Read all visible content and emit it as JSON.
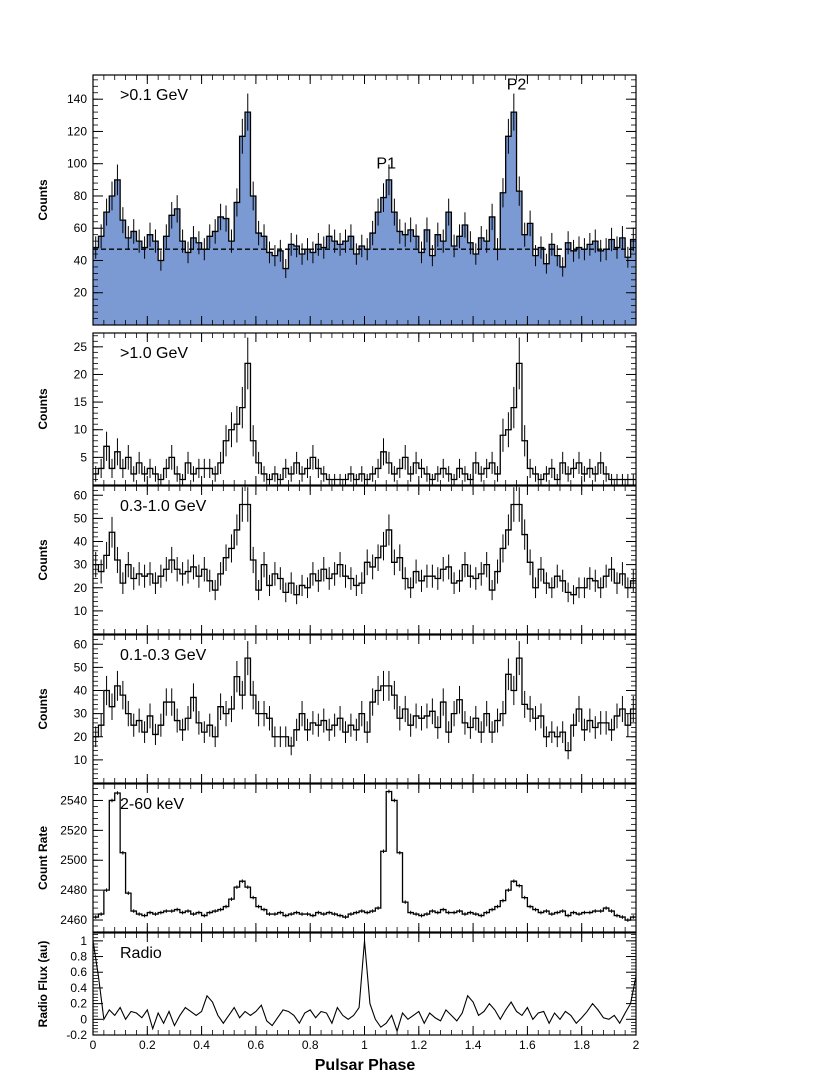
{
  "figure": {
    "xlabel": "Pulsar Phase",
    "xlim": [
      0,
      2
    ],
    "xticks": [
      "0",
      "0.2",
      "0.4",
      "0.6",
      "0.8",
      "1",
      "1.2",
      "1.4",
      "1.6",
      "1.8",
      "2"
    ],
    "xtick_values": [
      0,
      0.2,
      0.4,
      0.6,
      0.8,
      1.0,
      1.2,
      1.4,
      1.6,
      1.8,
      2.0
    ]
  },
  "chart_data": [
    {
      "type": "histogram",
      "label": ">0.1 GeV",
      "ylabel": "Counts",
      "ylim": [
        0,
        155
      ],
      "yticks": [
        20,
        40,
        60,
        80,
        100,
        120,
        140
      ],
      "filled": true,
      "fill_color": "#7b9ad3",
      "baseline": 47,
      "annotations": [
        {
          "text": "P1",
          "x": 1.08,
          "y": 97
        },
        {
          "text": "P2",
          "x": 1.56,
          "y": 146
        }
      ],
      "x": [
        0.01,
        0.03,
        0.05,
        0.07,
        0.09,
        0.11,
        0.13,
        0.15,
        0.17,
        0.19,
        0.21,
        0.23,
        0.25,
        0.27,
        0.29,
        0.31,
        0.33,
        0.35,
        0.37,
        0.39,
        0.41,
        0.43,
        0.45,
        0.47,
        0.49,
        0.51,
        0.53,
        0.55,
        0.57,
        0.59,
        0.61,
        0.63,
        0.65,
        0.67,
        0.69,
        0.71,
        0.73,
        0.75,
        0.77,
        0.79,
        0.81,
        0.83,
        0.85,
        0.87,
        0.89,
        0.91,
        0.93,
        0.95,
        0.97,
        0.99,
        1.01,
        1.03,
        1.05,
        1.07,
        1.09,
        1.11,
        1.13,
        1.15,
        1.17,
        1.19,
        1.21,
        1.23,
        1.25,
        1.27,
        1.29,
        1.31,
        1.33,
        1.35,
        1.37,
        1.39,
        1.41,
        1.43,
        1.45,
        1.47,
        1.49,
        1.51,
        1.53,
        1.55,
        1.57,
        1.59,
        1.61,
        1.63,
        1.65,
        1.67,
        1.69,
        1.71,
        1.73,
        1.75,
        1.77,
        1.79,
        1.81,
        1.83,
        1.85,
        1.87,
        1.89,
        1.91,
        1.93,
        1.95,
        1.97,
        1.99
      ],
      "values": [
        48,
        55,
        70,
        80,
        90,
        65,
        54,
        58,
        52,
        48,
        56,
        52,
        40,
        55,
        68,
        72,
        52,
        45,
        54,
        51,
        47,
        55,
        58,
        67,
        66,
        52,
        76,
        117,
        132,
        80,
        57,
        55,
        45,
        43,
        46,
        35,
        50,
        49,
        44,
        47,
        45,
        50,
        48,
        55,
        52,
        50,
        52,
        55,
        44,
        49,
        47,
        57,
        70,
        79,
        90,
        70,
        58,
        56,
        59,
        55,
        45,
        59,
        43,
        56,
        52,
        70,
        49,
        55,
        62,
        51,
        44,
        54,
        52,
        67,
        47,
        82,
        117,
        132,
        83,
        56,
        63,
        43,
        48,
        38,
        50,
        43,
        36,
        51,
        46,
        48,
        47,
        50,
        52,
        46,
        47,
        53,
        48,
        54,
        42,
        53
      ]
    },
    {
      "type": "histogram",
      "label": ">1.0 GeV",
      "ylabel": "Counts",
      "ylim": [
        0,
        27.5
      ],
      "yticks": [
        5,
        10,
        15,
        20,
        25
      ],
      "filled": false,
      "x": [
        0.01,
        0.03,
        0.05,
        0.07,
        0.09,
        0.11,
        0.13,
        0.15,
        0.17,
        0.19,
        0.21,
        0.23,
        0.25,
        0.27,
        0.29,
        0.31,
        0.33,
        0.35,
        0.37,
        0.39,
        0.41,
        0.43,
        0.45,
        0.47,
        0.49,
        0.51,
        0.53,
        0.55,
        0.57,
        0.59,
        0.61,
        0.63,
        0.65,
        0.67,
        0.69,
        0.71,
        0.73,
        0.75,
        0.77,
        0.79,
        0.81,
        0.83,
        0.85,
        0.87,
        0.89,
        0.91,
        0.93,
        0.95,
        0.97,
        0.99,
        1.01,
        1.03,
        1.05,
        1.07,
        1.09,
        1.11,
        1.13,
        1.15,
        1.17,
        1.19,
        1.21,
        1.23,
        1.25,
        1.27,
        1.29,
        1.31,
        1.33,
        1.35,
        1.37,
        1.39,
        1.41,
        1.43,
        1.45,
        1.47,
        1.49,
        1.51,
        1.53,
        1.55,
        1.57,
        1.59,
        1.61,
        1.63,
        1.65,
        1.67,
        1.69,
        1.71,
        1.73,
        1.75,
        1.77,
        1.79,
        1.81,
        1.83,
        1.85,
        1.87,
        1.89,
        1.91,
        1.93,
        1.95,
        1.97,
        1.99
      ],
      "values": [
        2,
        3,
        7,
        3,
        6,
        3,
        5,
        2,
        4,
        2,
        3,
        2,
        1,
        3,
        5,
        2,
        1,
        4,
        2,
        3,
        3,
        3,
        2,
        4,
        8,
        10,
        11,
        14,
        22,
        8,
        4,
        2,
        1,
        2,
        1,
        3,
        2,
        4,
        2,
        3,
        5,
        3,
        2,
        1,
        1,
        1,
        1,
        2,
        1,
        2,
        1,
        2,
        3,
        6,
        4,
        2,
        3,
        5,
        2,
        4,
        3,
        2,
        1,
        2,
        3,
        2,
        1,
        3,
        2,
        1,
        4,
        2,
        3,
        4,
        2,
        9,
        10,
        14,
        22,
        8,
        3,
        2,
        1,
        2,
        3,
        1,
        4,
        2,
        3,
        4,
        2,
        3,
        2,
        4,
        2,
        1,
        1,
        1,
        1,
        1
      ]
    },
    {
      "type": "histogram",
      "label": "0.3-1.0 GeV",
      "ylabel": "Counts",
      "ylim": [
        0,
        64
      ],
      "yticks": [
        10,
        20,
        30,
        40,
        50,
        60
      ],
      "filled": false,
      "x": [
        0.01,
        0.03,
        0.05,
        0.07,
        0.09,
        0.11,
        0.13,
        0.15,
        0.17,
        0.19,
        0.21,
        0.23,
        0.25,
        0.27,
        0.29,
        0.31,
        0.33,
        0.35,
        0.37,
        0.39,
        0.41,
        0.43,
        0.45,
        0.47,
        0.49,
        0.51,
        0.53,
        0.55,
        0.57,
        0.59,
        0.61,
        0.63,
        0.65,
        0.67,
        0.69,
        0.71,
        0.73,
        0.75,
        0.77,
        0.79,
        0.81,
        0.83,
        0.85,
        0.87,
        0.89,
        0.91,
        0.93,
        0.95,
        0.97,
        0.99,
        1.01,
        1.03,
        1.05,
        1.07,
        1.09,
        1.11,
        1.13,
        1.15,
        1.17,
        1.19,
        1.21,
        1.23,
        1.25,
        1.27,
        1.29,
        1.31,
        1.33,
        1.35,
        1.37,
        1.39,
        1.41,
        1.43,
        1.45,
        1.47,
        1.49,
        1.51,
        1.53,
        1.55,
        1.57,
        1.59,
        1.61,
        1.63,
        1.65,
        1.67,
        1.69,
        1.71,
        1.73,
        1.75,
        1.77,
        1.79,
        1.81,
        1.83,
        1.85,
        1.87,
        1.89,
        1.91,
        1.93,
        1.95,
        1.97,
        1.99
      ],
      "values": [
        30,
        27,
        34,
        44,
        32,
        22,
        30,
        24,
        26,
        25,
        26,
        22,
        25,
        28,
        32,
        28,
        26,
        27,
        29,
        25,
        28,
        23,
        19,
        26,
        33,
        37,
        45,
        56,
        56,
        32,
        19,
        30,
        21,
        26,
        24,
        18,
        22,
        17,
        21,
        20,
        26,
        23,
        28,
        24,
        26,
        30,
        25,
        24,
        21,
        22,
        31,
        29,
        33,
        38,
        45,
        31,
        33,
        24,
        20,
        27,
        23,
        25,
        25,
        24,
        28,
        29,
        22,
        23,
        30,
        25,
        24,
        26,
        30,
        19,
        27,
        37,
        45,
        56,
        56,
        43,
        31,
        20,
        28,
        22,
        20,
        25,
        23,
        18,
        17,
        20,
        20,
        24,
        23,
        20,
        25,
        28,
        22,
        26,
        20,
        23
      ]
    },
    {
      "type": "histogram",
      "label": "0.1-0.3 GeV",
      "ylabel": "Counts",
      "ylim": [
        0,
        64
      ],
      "yticks": [
        10,
        20,
        30,
        40,
        50,
        60
      ],
      "filled": false,
      "x": [
        0.01,
        0.03,
        0.05,
        0.07,
        0.09,
        0.11,
        0.13,
        0.15,
        0.17,
        0.19,
        0.21,
        0.23,
        0.25,
        0.27,
        0.29,
        0.31,
        0.33,
        0.35,
        0.37,
        0.39,
        0.41,
        0.43,
        0.45,
        0.47,
        0.49,
        0.51,
        0.53,
        0.55,
        0.57,
        0.59,
        0.61,
        0.63,
        0.65,
        0.67,
        0.69,
        0.71,
        0.73,
        0.75,
        0.77,
        0.79,
        0.81,
        0.83,
        0.85,
        0.87,
        0.89,
        0.91,
        0.93,
        0.95,
        0.97,
        0.99,
        1.01,
        1.03,
        1.05,
        1.07,
        1.09,
        1.11,
        1.13,
        1.15,
        1.17,
        1.19,
        1.21,
        1.23,
        1.25,
        1.27,
        1.29,
        1.31,
        1.33,
        1.35,
        1.37,
        1.39,
        1.41,
        1.43,
        1.45,
        1.47,
        1.49,
        1.51,
        1.53,
        1.55,
        1.57,
        1.59,
        1.61,
        1.63,
        1.65,
        1.67,
        1.69,
        1.71,
        1.73,
        1.75,
        1.77,
        1.79,
        1.81,
        1.83,
        1.85,
        1.87,
        1.89,
        1.91,
        1.93,
        1.95,
        1.97,
        1.99
      ],
      "values": [
        20,
        25,
        40,
        33,
        42,
        38,
        30,
        25,
        27,
        22,
        29,
        21,
        25,
        35,
        35,
        27,
        23,
        28,
        37,
        26,
        22,
        25,
        20,
        33,
        30,
        32,
        46,
        38,
        54,
        38,
        30,
        30,
        28,
        20,
        20,
        20,
        16,
        23,
        30,
        23,
        26,
        25,
        27,
        23,
        25,
        28,
        22,
        25,
        23,
        30,
        22,
        35,
        40,
        42,
        42,
        38,
        28,
        32,
        25,
        29,
        28,
        29,
        31,
        24,
        35,
        22,
        30,
        36,
        26,
        24,
        28,
        22,
        30,
        22,
        27,
        30,
        47,
        40,
        54,
        34,
        32,
        28,
        29,
        20,
        22,
        20,
        22,
        14,
        25,
        32,
        23,
        27,
        24,
        26,
        26,
        23,
        29,
        32,
        25,
        32
      ]
    },
    {
      "type": "histogram",
      "label": "2-60 keV",
      "ylabel": "Count Rate",
      "ylim": [
        2452,
        2551
      ],
      "yticks": [
        2460,
        2480,
        2500,
        2520,
        2540
      ],
      "filled": false,
      "x": [
        0.01,
        0.03,
        0.05,
        0.07,
        0.09,
        0.11,
        0.13,
        0.15,
        0.17,
        0.19,
        0.21,
        0.23,
        0.25,
        0.27,
        0.29,
        0.31,
        0.33,
        0.35,
        0.37,
        0.39,
        0.41,
        0.43,
        0.45,
        0.47,
        0.49,
        0.51,
        0.53,
        0.55,
        0.57,
        0.59,
        0.61,
        0.63,
        0.65,
        0.67,
        0.69,
        0.71,
        0.73,
        0.75,
        0.77,
        0.79,
        0.81,
        0.83,
        0.85,
        0.87,
        0.89,
        0.91,
        0.93,
        0.95,
        0.97,
        0.99,
        1.01,
        1.03,
        1.05,
        1.07,
        1.09,
        1.11,
        1.13,
        1.15,
        1.17,
        1.19,
        1.21,
        1.23,
        1.25,
        1.27,
        1.29,
        1.31,
        1.33,
        1.35,
        1.37,
        1.39,
        1.41,
        1.43,
        1.45,
        1.47,
        1.49,
        1.51,
        1.53,
        1.55,
        1.57,
        1.59,
        1.61,
        1.63,
        1.65,
        1.67,
        1.69,
        1.71,
        1.73,
        1.75,
        1.77,
        1.79,
        1.81,
        1.83,
        1.85,
        1.87,
        1.89,
        1.91,
        1.93,
        1.95,
        1.97,
        1.99
      ],
      "values": [
        2462,
        2464,
        2480,
        2540,
        2545,
        2505,
        2478,
        2466,
        2464,
        2463,
        2465,
        2464,
        2465,
        2466,
        2466,
        2467,
        2465,
        2466,
        2464,
        2465,
        2463,
        2465,
        2466,
        2467,
        2469,
        2474,
        2482,
        2486,
        2482,
        2475,
        2469,
        2467,
        2464,
        2464,
        2465,
        2463,
        2464,
        2465,
        2464,
        2464,
        2463,
        2465,
        2464,
        2465,
        2464,
        2463,
        2462,
        2464,
        2465,
        2466,
        2465,
        2466,
        2468,
        2506,
        2546,
        2540,
        2505,
        2472,
        2465,
        2464,
        2463,
        2464,
        2466,
        2465,
        2467,
        2465,
        2465,
        2466,
        2464,
        2465,
        2464,
        2463,
        2465,
        2467,
        2469,
        2473,
        2480,
        2486,
        2483,
        2475,
        2469,
        2467,
        2465,
        2466,
        2464,
        2465,
        2466,
        2463,
        2465,
        2464,
        2465,
        2465,
        2466,
        2466,
        2468,
        2466,
        2463,
        2462,
        2460,
        2462
      ]
    },
    {
      "type": "line",
      "label": "Radio",
      "ylabel": "Radio Flux (au)",
      "ylim": [
        -0.2,
        1.1
      ],
      "yticks": [
        -0.2,
        0,
        0.2,
        0.4,
        0.6,
        0.8,
        1
      ],
      "ytick_labels": [
        "-0.2",
        "0",
        "0.2",
        "0.4",
        "0.6",
        "0.8",
        "1"
      ],
      "filled": false,
      "x": [
        0.0,
        0.02,
        0.04,
        0.06,
        0.08,
        0.1,
        0.12,
        0.14,
        0.16,
        0.18,
        0.2,
        0.22,
        0.24,
        0.26,
        0.28,
        0.3,
        0.32,
        0.34,
        0.36,
        0.38,
        0.4,
        0.42,
        0.44,
        0.46,
        0.48,
        0.5,
        0.52,
        0.54,
        0.56,
        0.58,
        0.6,
        0.62,
        0.64,
        0.66,
        0.68,
        0.7,
        0.72,
        0.74,
        0.76,
        0.78,
        0.8,
        0.82,
        0.84,
        0.86,
        0.88,
        0.9,
        0.92,
        0.94,
        0.96,
        0.98,
        1.0,
        1.02,
        1.04,
        1.06,
        1.08,
        1.1,
        1.12,
        1.14,
        1.16,
        1.18,
        1.2,
        1.22,
        1.24,
        1.26,
        1.28,
        1.3,
        1.32,
        1.34,
        1.36,
        1.38,
        1.4,
        1.42,
        1.44,
        1.46,
        1.48,
        1.5,
        1.52,
        1.54,
        1.56,
        1.58,
        1.6,
        1.62,
        1.64,
        1.66,
        1.68,
        1.7,
        1.72,
        1.74,
        1.76,
        1.78,
        1.8,
        1.82,
        1.84,
        1.86,
        1.88,
        1.9,
        1.92,
        1.94,
        1.96,
        1.98,
        2.0
      ],
      "values": [
        1.0,
        0.55,
        0.0,
        0.12,
        0.05,
        0.15,
        0.0,
        0.1,
        0.08,
        0.02,
        0.12,
        -0.12,
        0.08,
        -0.05,
        0.1,
        -0.08,
        0.05,
        0.15,
        0.1,
        0.05,
        0.1,
        0.3,
        0.22,
        0.05,
        -0.05,
        0.05,
        0.15,
        0.02,
        0.1,
        0.05,
        0.1,
        0.18,
        -0.02,
        -0.08,
        0.02,
        0.12,
        0.1,
        0.05,
        -0.05,
        0.08,
        0.12,
        0.02,
        0.1,
        0.08,
        -0.05,
        0.15,
        0.05,
        0.0,
        0.05,
        0.15,
        1.0,
        0.2,
        0.0,
        -0.1,
        -0.05,
        0.05,
        -0.15,
        0.08,
        0.0,
        0.05,
        0.1,
        -0.05,
        0.08,
        0.02,
        -0.02,
        0.12,
        0.05,
        -0.02,
        0.08,
        0.3,
        0.22,
        0.05,
        0.1,
        0.2,
        0.12,
        0.0,
        0.12,
        0.22,
        0.1,
        0.05,
        0.15,
        0.0,
        0.08,
        0.1,
        -0.05,
        0.08,
        0.0,
        0.1,
        0.05,
        -0.05,
        0.02,
        0.1,
        0.2,
        0.12,
        0.02,
        0.0,
        0.05,
        -0.05,
        0.08,
        0.2,
        0.55
      ]
    }
  ]
}
